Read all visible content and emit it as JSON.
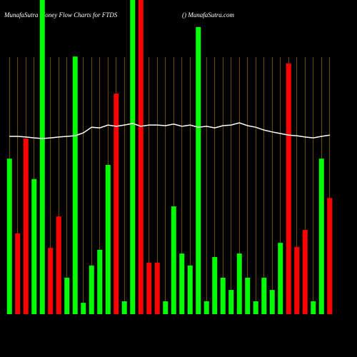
{
  "chart_data": {
    "type": "bar",
    "title": "MunafaSutra  Money Flow  Charts for FTDS",
    "subtitle": "() MunafaSutra.com",
    "categories": [
      null,
      null,
      null,
      null,
      null,
      null,
      null,
      null,
      null,
      null,
      null,
      null,
      null,
      null,
      null,
      null,
      null,
      null,
      null,
      null,
      null,
      null,
      null,
      null,
      null,
      null,
      null,
      null,
      null,
      null,
      null,
      null,
      null,
      null,
      null,
      null,
      null,
      null,
      null,
      null
    ],
    "series": [
      {
        "type": "bar",
        "colors": [
          "#00ff00",
          "#ff0000",
          "#ff0000",
          "#00ff00",
          "#00ff00",
          "#ff0000",
          "#ff0000",
          "#00ff00",
          "#00ff00",
          "#00ff00",
          "#00ff00",
          "#00ff00",
          "#00ff00",
          "#ff0000",
          "#00ff00",
          "#00ff00",
          "#ff0000",
          "#ff0000",
          "#ff0000",
          "#00ff00",
          "#00ff00",
          "#00ff00",
          "#00ff00",
          "#00ff00",
          "#00ff00",
          "#00ff00",
          "#00ff00",
          "#00ff00",
          "#00ff00",
          "#00ff00",
          "#00ff00",
          "#00ff00",
          "#00ff00",
          "#00ff00",
          "#ff0000",
          "#ff0000",
          "#ff0000",
          "#00ff00",
          "#00ff00",
          "#ff0000"
        ],
        "values": [
          49.5,
          25.7,
          55.9,
          43,
          100,
          21.1,
          31.1,
          11.6,
          82,
          3.6,
          15.5,
          20.5,
          47.5,
          70.2,
          4.1,
          100,
          100,
          16.4,
          16.4,
          4.1,
          34.3,
          19.3,
          15.5,
          91.4,
          4.1,
          18.2,
          11.6,
          7.7,
          19.3,
          11.6,
          4.1,
          11.6,
          7.7,
          22.7,
          79.8,
          21.4,
          26.8,
          4.1,
          49.5,
          37
        ]
      },
      {
        "type": "line",
        "color": "#ffffff",
        "values": [
          56.6,
          56.6,
          56.4,
          56.1,
          55.9,
          56.1,
          56.4,
          56.6,
          56.8,
          57.7,
          59.5,
          59.3,
          60.2,
          59.8,
          60.2,
          60.7,
          59.8,
          60.2,
          60.2,
          60,
          60.5,
          59.8,
          60.2,
          59.5,
          59.8,
          59.3,
          60,
          60.2,
          60.9,
          60,
          59.5,
          58.6,
          58,
          57.5,
          57,
          56.8,
          56.4,
          56.1,
          56.6,
          57
        ]
      }
    ],
    "ylim": [
      0,
      100
    ],
    "grid_color": "#b8860b",
    "background": "#000000"
  }
}
